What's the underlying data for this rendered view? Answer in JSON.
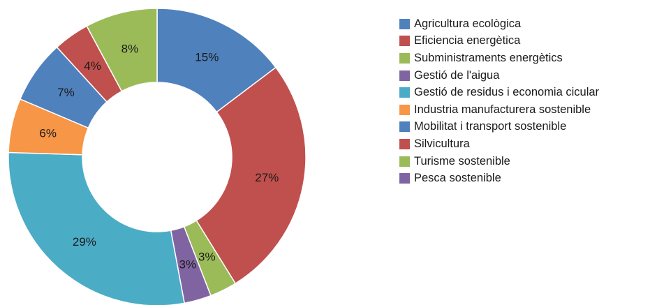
{
  "chart_data": {
    "type": "pie",
    "donut": true,
    "legend_position": "right",
    "slices": [
      {
        "label": "Agricultura ecològica",
        "value": 15,
        "color": "#4f81bd",
        "display": "15%"
      },
      {
        "label": "Eficiencia energètica",
        "value": 27,
        "color": "#c0504d",
        "display": "27%"
      },
      {
        "label": "Subministraments energètics",
        "value": 3,
        "color": "#9bbb59",
        "display": "3%"
      },
      {
        "label": "Gestió de l'aigua",
        "value": 3,
        "color": "#8064a2",
        "display": "3%"
      },
      {
        "label": "Gestió de residus i economia cicular",
        "value": 29,
        "color": "#4bacc6",
        "display": "29%"
      },
      {
        "label": "Industria manufacturera sostenible",
        "value": 6,
        "color": "#f79646",
        "display": "6%"
      },
      {
        "label": "Mobilitat i transport sostenible",
        "value": 7,
        "color": "#4f81bd",
        "display": "7%"
      },
      {
        "label": "Silvicultura",
        "value": 4,
        "color": "#c0504d",
        "display": "4%"
      },
      {
        "label": "Turisme sostenible",
        "value": 8,
        "color": "#9bbb59",
        "display": "8%"
      },
      {
        "label": "Pesca sostenible",
        "value": 0,
        "color": "#8064a2",
        "display": ""
      }
    ]
  }
}
